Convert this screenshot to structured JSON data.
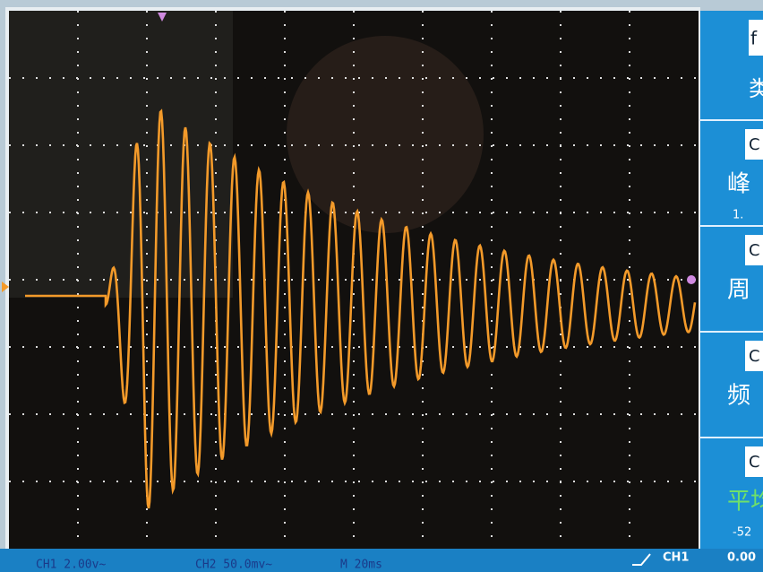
{
  "side_panel": {
    "top": [
      "f",
      "类"
    ],
    "items": [
      {
        "tag": "C",
        "label": "峰",
        "value": "1."
      },
      {
        "tag": "C",
        "label": "周"
      },
      {
        "tag": "C",
        "label": "频"
      },
      {
        "tag": "C",
        "label": "平均",
        "value": "-52"
      }
    ]
  },
  "status_bar": {
    "ch1": "CH1 2.00v~",
    "ch2": "CH2 50.0mv~",
    "timebase": "M 20ms",
    "trigger_source": "CH1",
    "trigger_level": "0.00"
  }
}
